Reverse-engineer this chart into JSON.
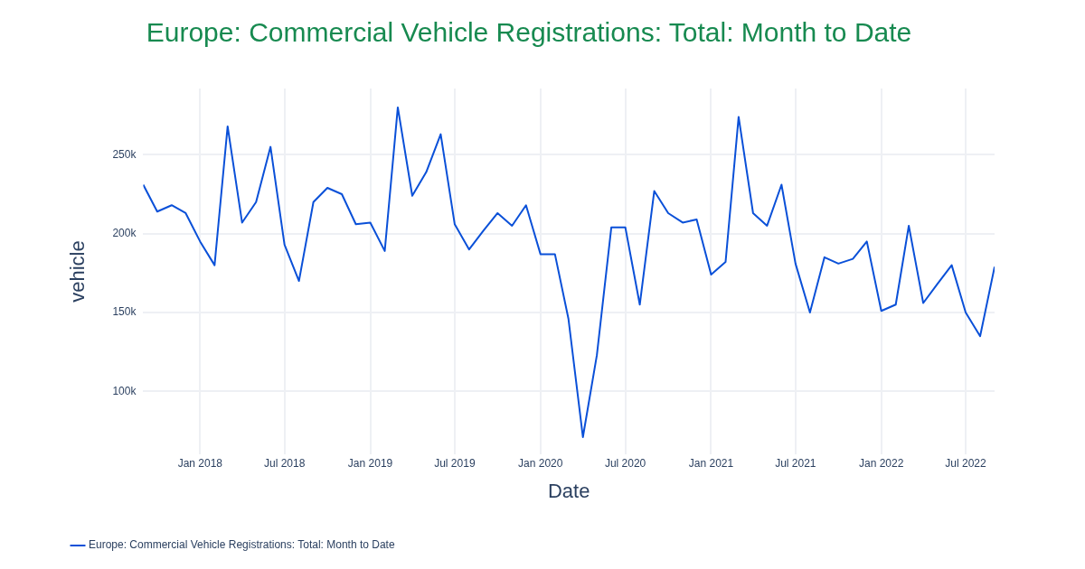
{
  "chart_data": {
    "type": "line",
    "title": "Europe: Commercial Vehicle Registrations: Total: Month to Date",
    "xlabel": "Date",
    "ylabel": "vehicle",
    "x": [
      "2017-09",
      "2017-10",
      "2017-11",
      "2017-12",
      "2018-01",
      "2018-02",
      "2018-03",
      "2018-04",
      "2018-05",
      "2018-06",
      "2018-07",
      "2018-08",
      "2018-09",
      "2018-10",
      "2018-11",
      "2018-12",
      "2019-01",
      "2019-02",
      "2019-03",
      "2019-04",
      "2019-05",
      "2019-06",
      "2019-07",
      "2019-08",
      "2019-09",
      "2019-10",
      "2019-11",
      "2019-12",
      "2020-01",
      "2020-02",
      "2020-03",
      "2020-04",
      "2020-05",
      "2020-06",
      "2020-07",
      "2020-08",
      "2020-09",
      "2020-10",
      "2020-11",
      "2020-12",
      "2021-01",
      "2021-02",
      "2021-03",
      "2021-04",
      "2021-05",
      "2021-06",
      "2021-07",
      "2021-08",
      "2021-09",
      "2021-10",
      "2021-11",
      "2021-12",
      "2022-01",
      "2022-02",
      "2022-03",
      "2022-04",
      "2022-05",
      "2022-06",
      "2022-07",
      "2022-08",
      "2022-09"
    ],
    "series": [
      {
        "name": "Europe: Commercial Vehicle Registrations: Total: Month to Date",
        "color": "#0a50d8",
        "values": [
          231000,
          214000,
          218000,
          213000,
          195000,
          180000,
          268000,
          207000,
          220000,
          255000,
          193000,
          170000,
          220000,
          229000,
          225000,
          206000,
          207000,
          189000,
          280000,
          224000,
          239000,
          263000,
          206000,
          190000,
          202000,
          213000,
          205000,
          218000,
          187000,
          187000,
          146000,
          71000,
          123000,
          204000,
          204000,
          155000,
          227000,
          213000,
          207000,
          209000,
          174000,
          182000,
          274000,
          213000,
          205000,
          231000,
          181000,
          150000,
          185000,
          181000,
          184000,
          195000,
          151000,
          155000,
          205000,
          156000,
          168000,
          180000,
          150000,
          135000,
          179000
        ]
      }
    ],
    "xlim": [
      "2017-09",
      "2022-09"
    ],
    "xticks": [
      {
        "value": "2018-01",
        "label": "Jan 2018"
      },
      {
        "value": "2018-07",
        "label": "Jul 2018"
      },
      {
        "value": "2019-01",
        "label": "Jan 2019"
      },
      {
        "value": "2019-07",
        "label": "Jul 2019"
      },
      {
        "value": "2020-01",
        "label": "Jan 2020"
      },
      {
        "value": "2020-07",
        "label": "Jul 2020"
      },
      {
        "value": "2021-01",
        "label": "Jan 2021"
      },
      {
        "value": "2021-07",
        "label": "Jul 2021"
      },
      {
        "value": "2022-01",
        "label": "Jan 2022"
      },
      {
        "value": "2022-07",
        "label": "Jul 2022"
      }
    ],
    "ylim": [
      60000,
      292000
    ],
    "yticks": [
      {
        "value": 100000,
        "label": "100k"
      },
      {
        "value": 150000,
        "label": "150k"
      },
      {
        "value": 200000,
        "label": "200k"
      },
      {
        "value": 250000,
        "label": "250k"
      }
    ],
    "grid": true,
    "legend": "bottom left",
    "marker": "none",
    "line_style": "solid"
  }
}
